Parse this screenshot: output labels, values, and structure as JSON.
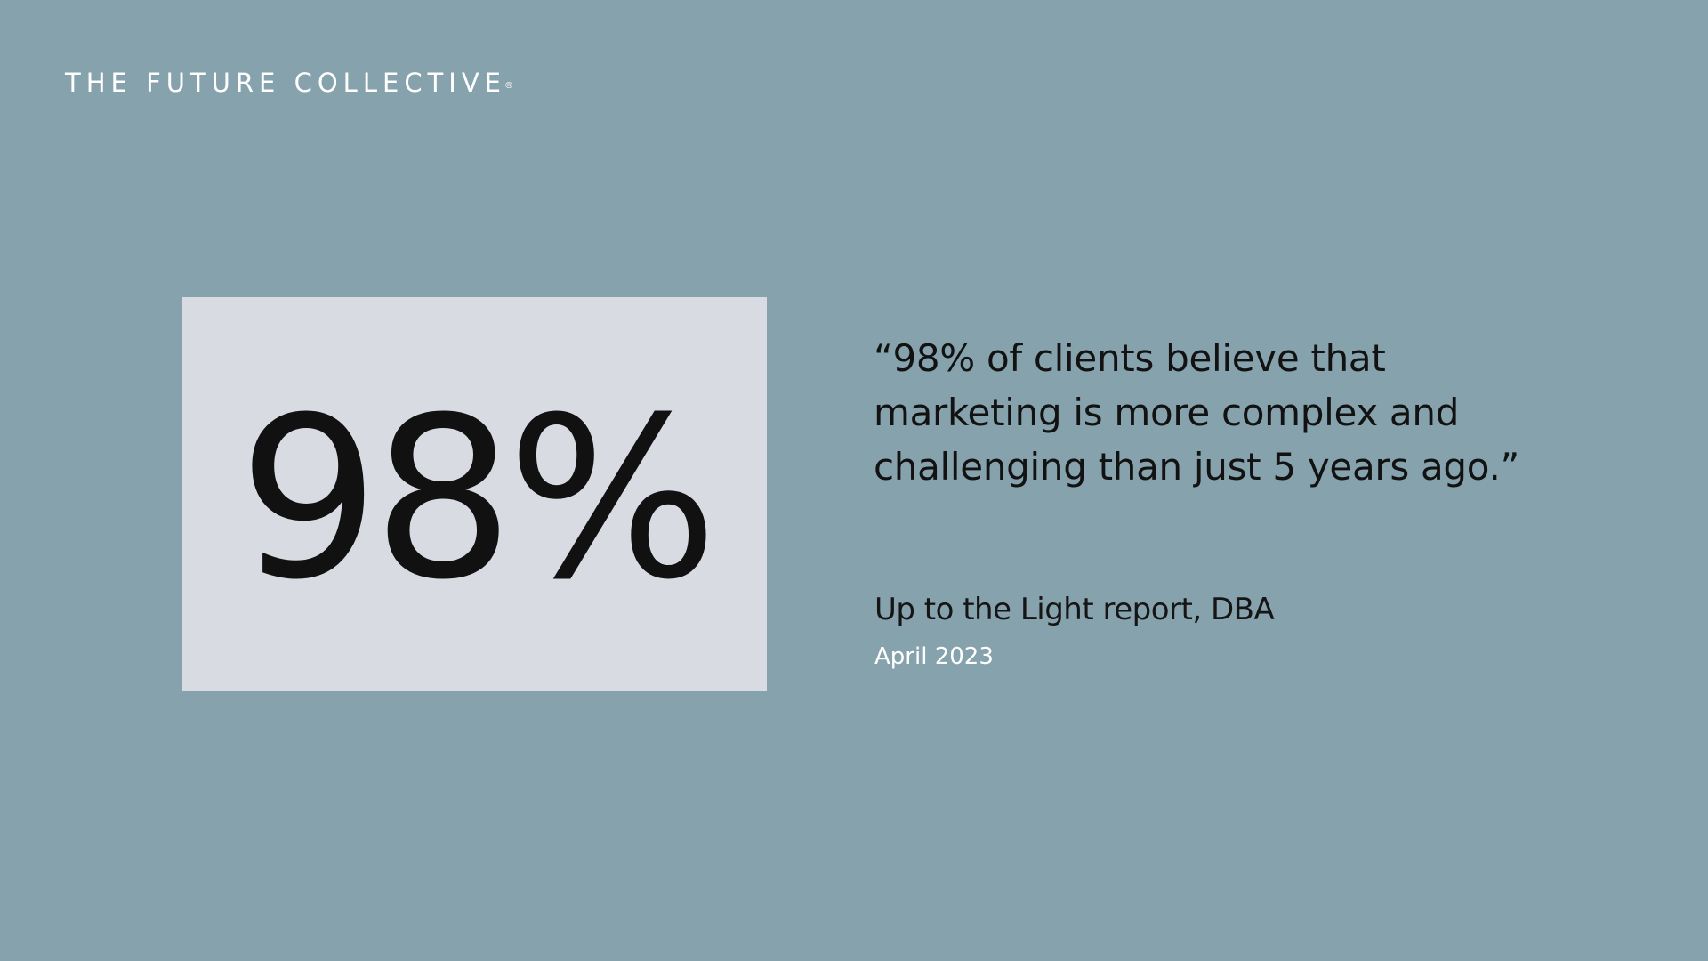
{
  "brand": {
    "name": "THE FUTURE COLLECTIVE",
    "mark": "®"
  },
  "stat": {
    "value": "98%"
  },
  "quote": {
    "lines": [
      "“98% of clients believe that",
      "marketing is more complex and",
      "challenging than just 5 years ago.”"
    ]
  },
  "citation": {
    "source": "Up to the Light report, DBA",
    "date": "April 2023"
  },
  "colors": {
    "background": "#86a2ad",
    "stat_box": "#d8dbe2",
    "text_dark": "#121212",
    "text_light": "#ffffff"
  }
}
